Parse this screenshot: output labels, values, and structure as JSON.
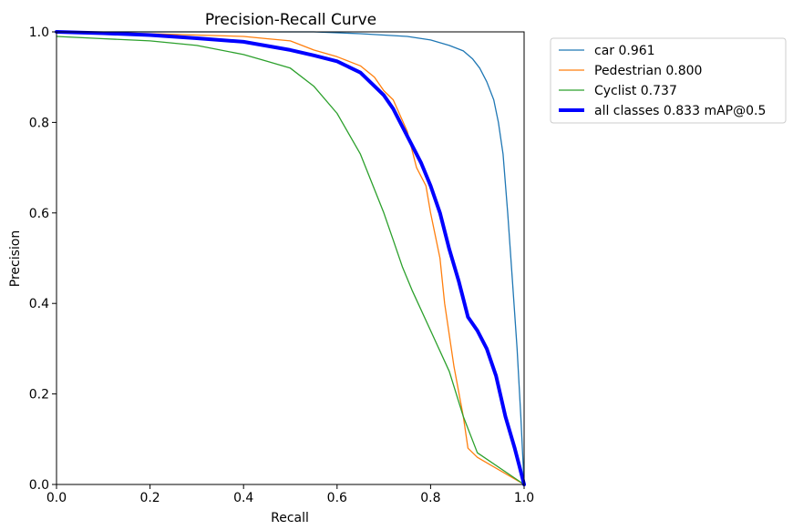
{
  "chart_data": {
    "type": "line",
    "title": "Precision-Recall Curve",
    "xlabel": "Recall",
    "ylabel": "Precision",
    "xlim": [
      0,
      1
    ],
    "ylim": [
      0,
      1
    ],
    "xticks": [
      "0.0",
      "0.2",
      "0.4",
      "0.6",
      "0.8",
      "1.0"
    ],
    "yticks": [
      "0.0",
      "0.2",
      "0.4",
      "0.6",
      "0.8",
      "1.0"
    ],
    "grid": false,
    "legend_position": "outside-right-top",
    "series": [
      {
        "name": "car 0.961",
        "color": "#1f77b4",
        "x": [
          0,
          0.2,
          0.4,
          0.55,
          0.6,
          0.65,
          0.7,
          0.75,
          0.8,
          0.84,
          0.87,
          0.89,
          0.905,
          0.92,
          0.935,
          0.945,
          0.955,
          0.965,
          0.975,
          0.985,
          0.993,
          1.0
        ],
        "y": [
          1.0,
          1.0,
          1.0,
          1.0,
          0.998,
          0.996,
          0.993,
          0.99,
          0.982,
          0.97,
          0.958,
          0.94,
          0.92,
          0.89,
          0.85,
          0.8,
          0.73,
          0.6,
          0.45,
          0.3,
          0.15,
          0.0
        ]
      },
      {
        "name": "Pedestrian 0.800",
        "color": "#ff7f0e",
        "x": [
          0,
          0.1,
          0.2,
          0.3,
          0.4,
          0.45,
          0.5,
          0.55,
          0.6,
          0.65,
          0.68,
          0.7,
          0.72,
          0.75,
          0.77,
          0.79,
          0.8,
          0.82,
          0.83,
          0.85,
          0.87,
          0.88,
          0.9,
          1.0
        ],
        "y": [
          1.0,
          0.999,
          0.996,
          0.993,
          0.99,
          0.985,
          0.98,
          0.96,
          0.945,
          0.925,
          0.9,
          0.87,
          0.85,
          0.78,
          0.7,
          0.66,
          0.6,
          0.5,
          0.4,
          0.26,
          0.15,
          0.08,
          0.06,
          0.0
        ]
      },
      {
        "name": "Cyclist 0.737",
        "color": "#2ca02c",
        "x": [
          0,
          0.1,
          0.2,
          0.3,
          0.4,
          0.45,
          0.5,
          0.55,
          0.6,
          0.65,
          0.7,
          0.72,
          0.74,
          0.76,
          0.8,
          0.84,
          0.87,
          0.9,
          1.0
        ],
        "y": [
          0.99,
          0.985,
          0.98,
          0.97,
          0.95,
          0.935,
          0.92,
          0.88,
          0.82,
          0.73,
          0.6,
          0.54,
          0.48,
          0.43,
          0.34,
          0.25,
          0.15,
          0.07,
          0.0
        ]
      },
      {
        "name": "all classes 0.833 mAP@0.5",
        "color": "#0000ff",
        "x": [
          0,
          0.1,
          0.2,
          0.3,
          0.4,
          0.5,
          0.55,
          0.6,
          0.65,
          0.68,
          0.7,
          0.72,
          0.74,
          0.76,
          0.78,
          0.8,
          0.82,
          0.84,
          0.86,
          0.88,
          0.9,
          0.92,
          0.94,
          0.96,
          0.98,
          0.99,
          1.0
        ],
        "y": [
          1.0,
          0.997,
          0.993,
          0.986,
          0.978,
          0.96,
          0.948,
          0.935,
          0.91,
          0.88,
          0.86,
          0.83,
          0.79,
          0.75,
          0.71,
          0.66,
          0.6,
          0.52,
          0.45,
          0.37,
          0.34,
          0.3,
          0.24,
          0.15,
          0.08,
          0.04,
          0.0
        ]
      }
    ]
  }
}
